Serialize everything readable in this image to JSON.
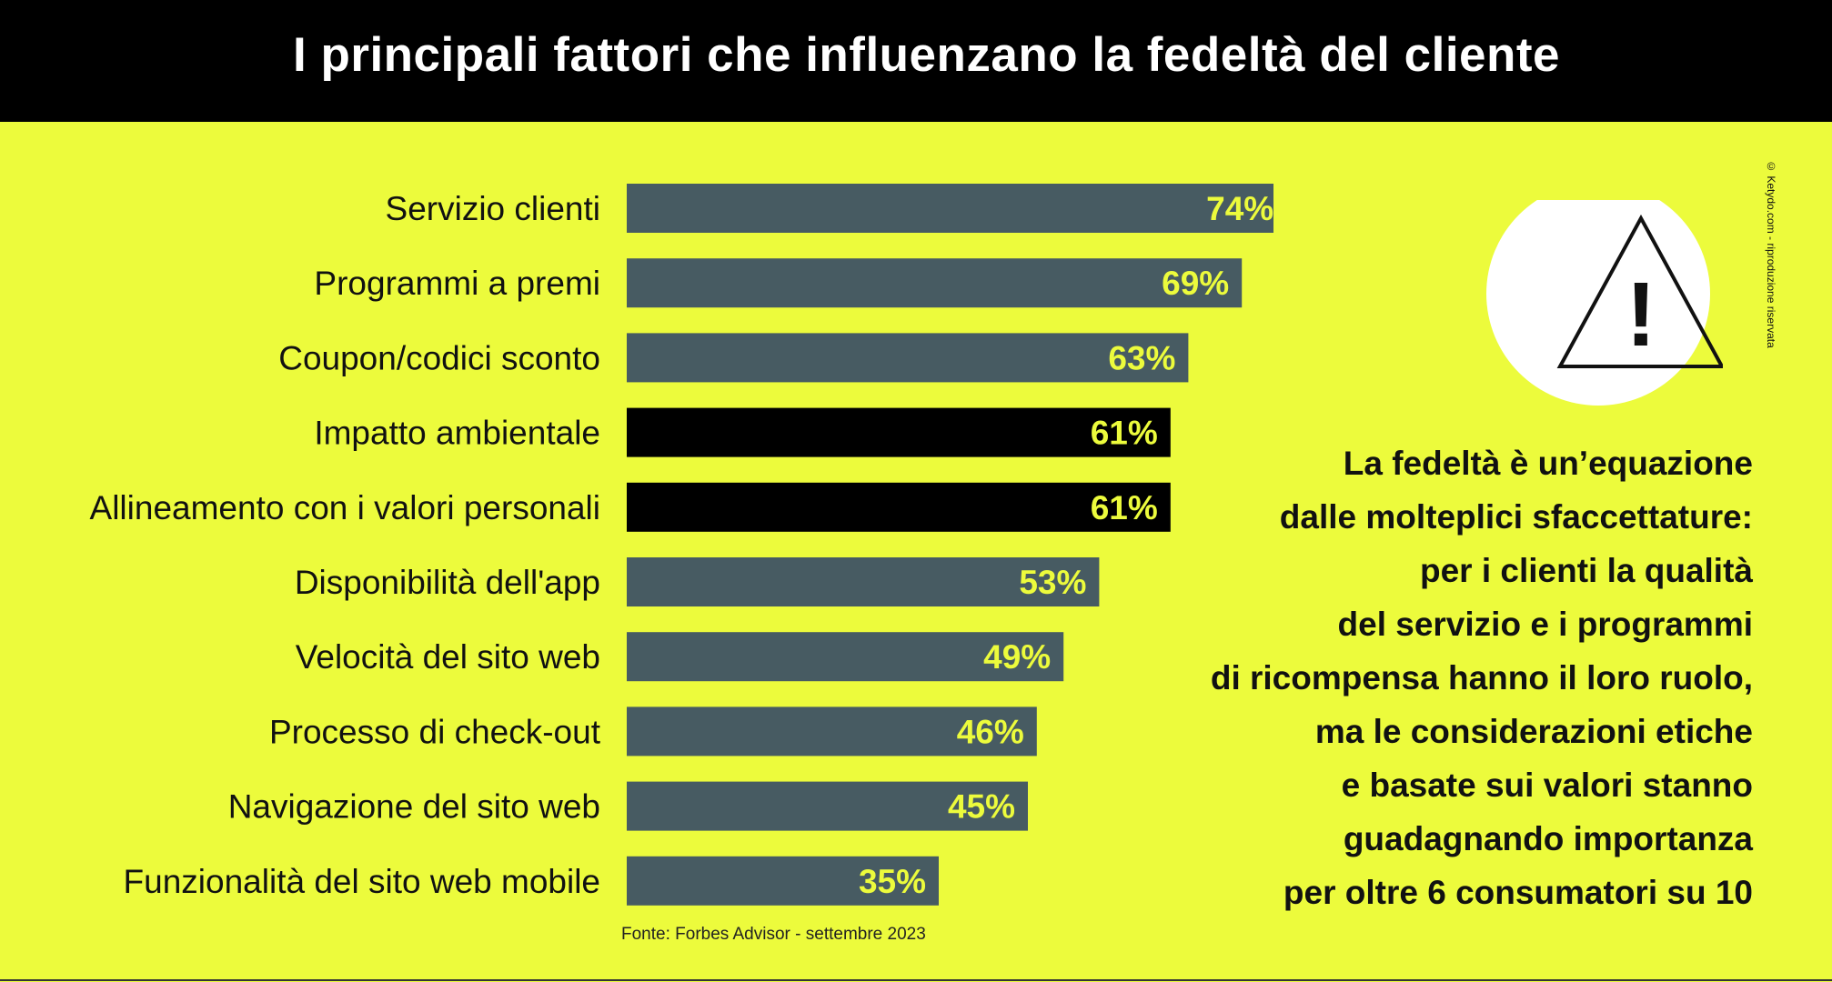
{
  "header": {
    "title": "I principali fattori che influenzano la fedeltà del cliente"
  },
  "chart_data": {
    "type": "bar",
    "orientation": "horizontal",
    "title": "I principali fattori che influenzano la fedeltà del cliente",
    "categories": [
      "Servizio clienti",
      "Programmi a premi",
      "Coupon/codici sconto",
      "Impatto ambientale",
      "Allineamento con i valori personali",
      "Disponibilità dell'app",
      "Velocità del sito web",
      "Processo di check-out",
      "Navigazione del sito web",
      "Funzionalità del sito web mobile"
    ],
    "values": [
      74,
      69,
      63,
      61,
      61,
      53,
      49,
      46,
      45,
      35
    ],
    "value_suffix": "%",
    "highlighted": [
      false,
      false,
      false,
      true,
      true,
      false,
      false,
      false,
      false,
      false
    ],
    "xlim": [
      0,
      100
    ],
    "grid": false,
    "legend": "none"
  },
  "colors": {
    "background": "#ecfb3c",
    "bar": "#475b62",
    "bar_highlight": "#000000",
    "value_label": "#ecfb3c",
    "header_bg": "#000000"
  },
  "source": "Fonte: Forbes Advisor - settembre 2023",
  "copyright": "© Ketydo.com - riproduzione riservata",
  "warning_icon": {
    "name": "warning-triangle-icon",
    "glyph": "!"
  },
  "note": {
    "lines": [
      "La fedeltà è un’equazione",
      "dalle molteplici sfaccettature:",
      "per i clienti la qualità",
      "del servizio e i programmi",
      "di ricompensa hanno il loro ruolo,",
      "ma le considerazioni etiche",
      "e basate sui valori stanno",
      "guadagnando importanza",
      "per oltre 6 consumatori su 10"
    ]
  }
}
